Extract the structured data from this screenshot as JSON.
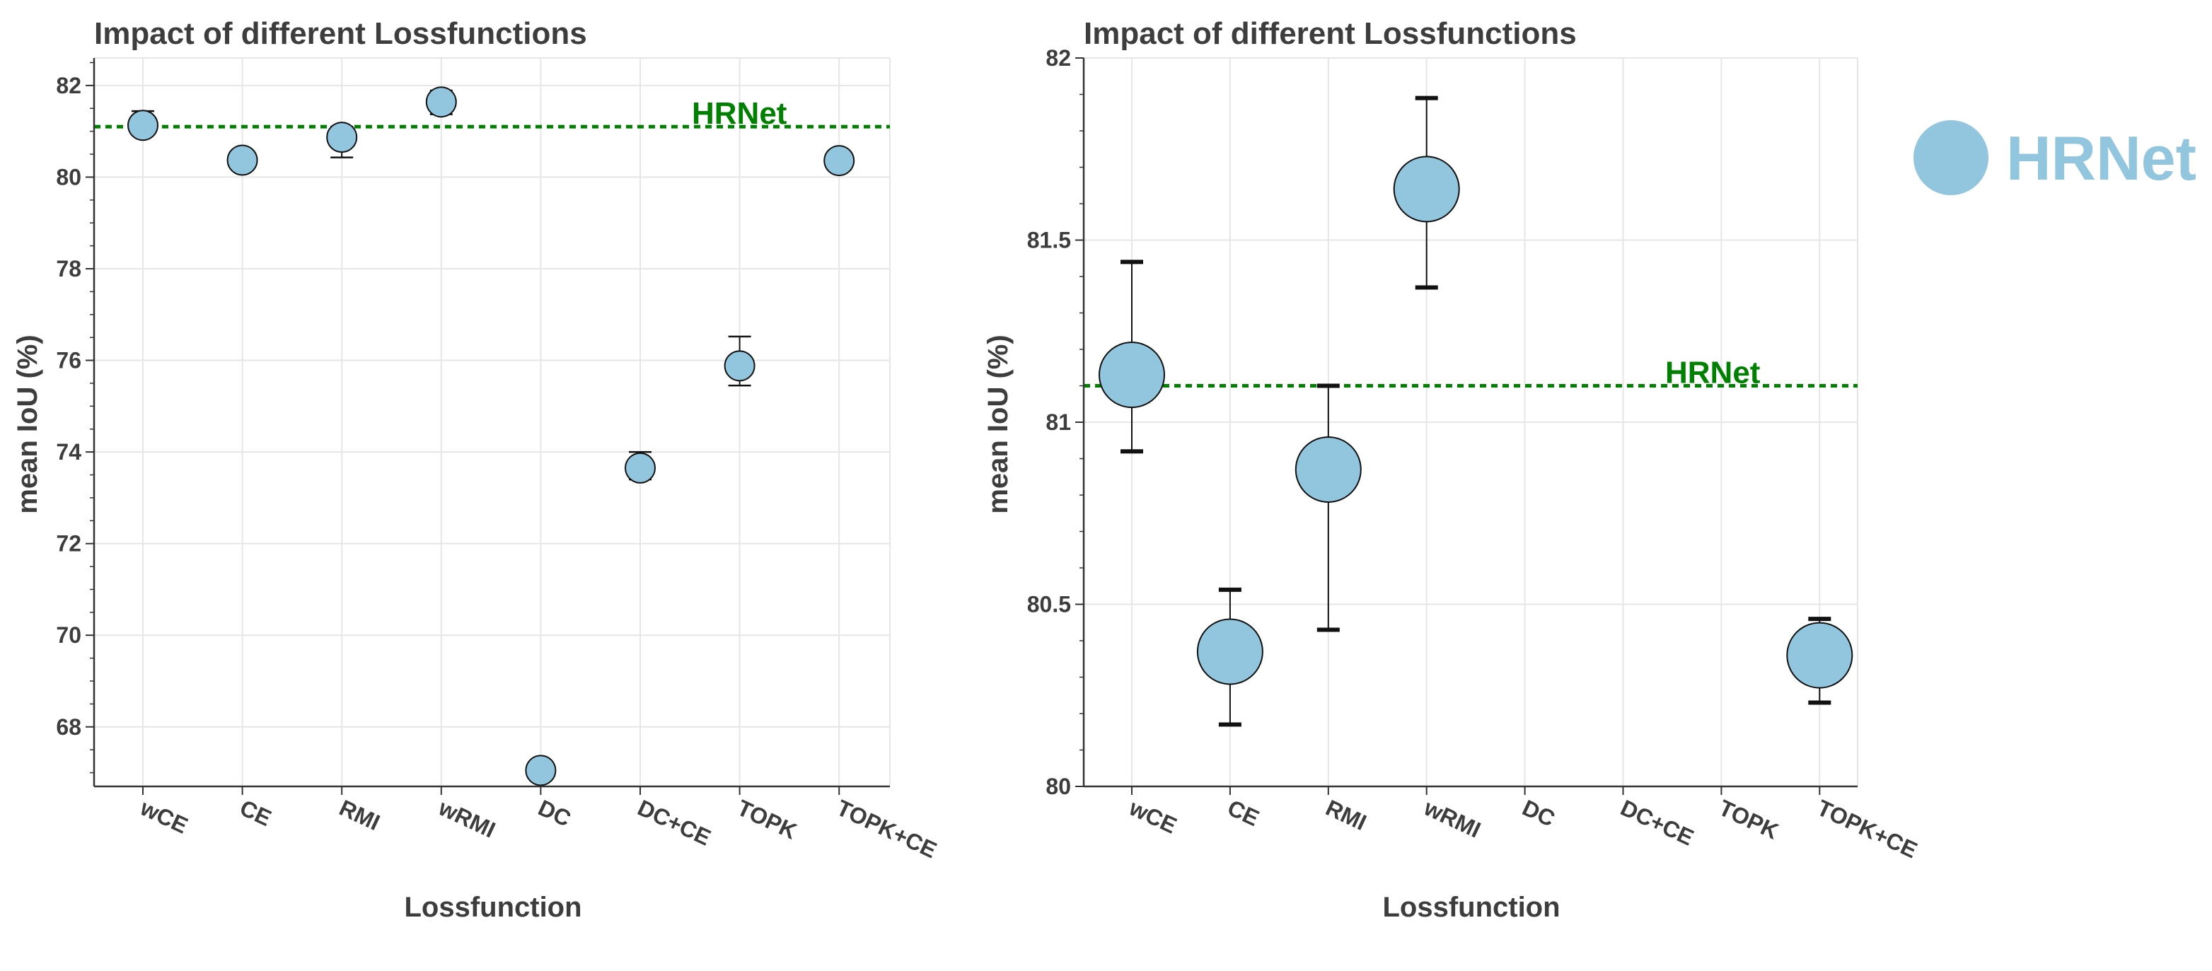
{
  "chart_data": [
    {
      "type": "scatter",
      "title": "Impact of different Lossfunctions",
      "xlabel": "Lossfunction",
      "ylabel": "mean IoU (%)",
      "categories": [
        "wCE",
        "CE",
        "RMI",
        "wRMI",
        "DC",
        "DC+CE",
        "TOPK",
        "TOPK+CE"
      ],
      "ylim": [
        66.7,
        82.6
      ],
      "yticks": [
        "68",
        "70",
        "72",
        "74",
        "76",
        "78",
        "80",
        "82"
      ],
      "grid": true,
      "series": [
        {
          "name": "HRNet",
          "color": "#92c5de",
          "values": [
            81.13,
            80.37,
            80.87,
            81.64,
            67.05,
            73.65,
            75.88,
            80.36
          ],
          "err_low": [
            80.92,
            80.17,
            80.43,
            81.37,
            66.98,
            73.4,
            75.45,
            80.23
          ],
          "err_high": [
            81.44,
            80.54,
            81.1,
            81.89,
            67.12,
            74.0,
            76.52,
            80.46
          ]
        }
      ],
      "reference_line": {
        "label": "HRNet",
        "value": 81.1,
        "color": "#008000",
        "style": "dotted"
      }
    },
    {
      "type": "scatter",
      "title": "Impact of different Lossfunctions",
      "xlabel": "Lossfunction",
      "ylabel": "mean IoU (%)",
      "categories": [
        "wCE",
        "CE",
        "RMI",
        "wRMI",
        "DC",
        "DC+CE",
        "TOPK",
        "TOPK+CE"
      ],
      "ylim": [
        80.0,
        82.0
      ],
      "yticks": [
        "80",
        "80.5",
        "81",
        "81.5",
        "82"
      ],
      "grid": true,
      "series": [
        {
          "name": "HRNet",
          "color": "#92c5de",
          "values": [
            81.13,
            80.37,
            80.87,
            81.64,
            null,
            null,
            null,
            80.36
          ],
          "err_low": [
            80.92,
            80.17,
            80.43,
            81.37,
            null,
            null,
            null,
            80.23
          ],
          "err_high": [
            81.44,
            80.54,
            81.1,
            81.89,
            null,
            null,
            null,
            80.46
          ]
        }
      ],
      "reference_line": {
        "label": "HRNet",
        "value": 81.1,
        "color": "#008000",
        "style": "dotted"
      }
    }
  ],
  "legend": {
    "label": "HRNet",
    "color": "#92c5de",
    "placement": "right"
  }
}
